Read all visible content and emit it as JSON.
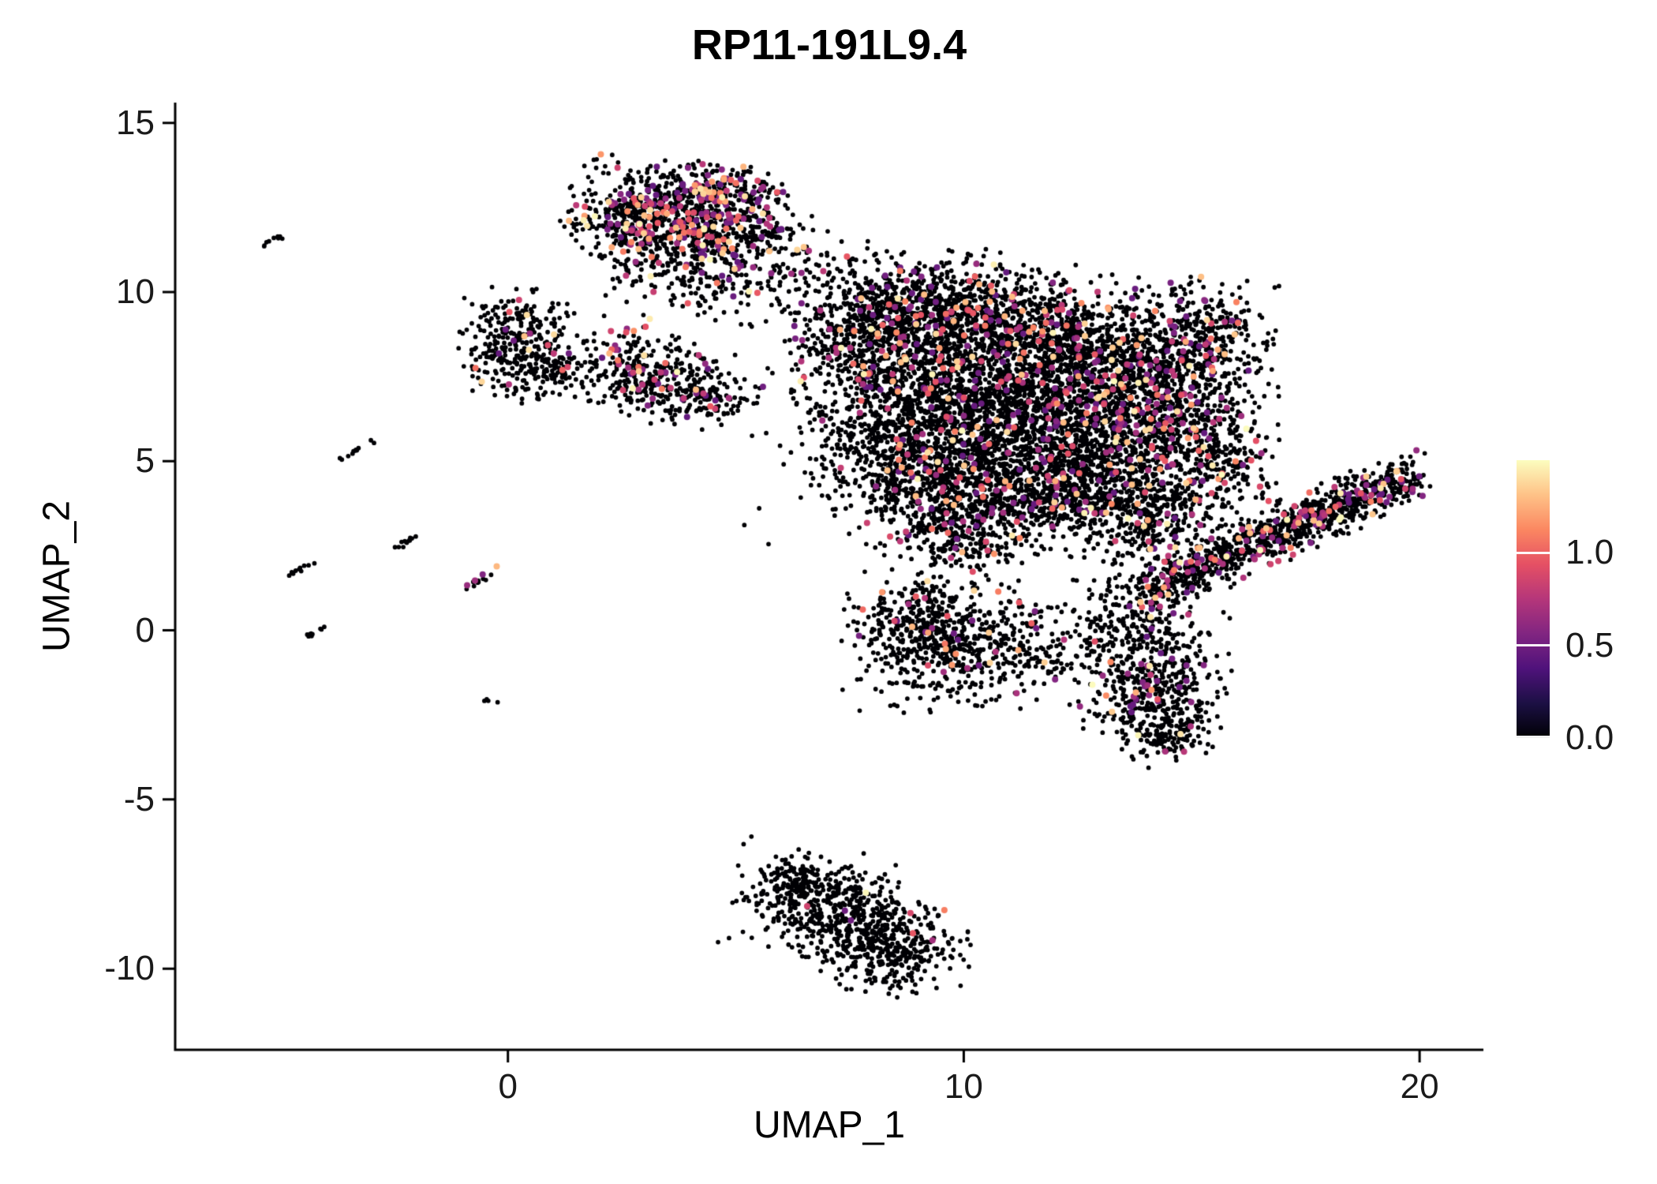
{
  "title": "RP11-191L9.4",
  "axes": {
    "x_label": "UMAP_1",
    "y_label": "UMAP_2"
  },
  "chart_data": {
    "type": "scatter",
    "title": "RP11-191L9.4",
    "xlabel": "UMAP_1",
    "ylabel": "UMAP_2",
    "x_domain": [
      -7.3,
      21.4
    ],
    "y_domain": [
      -12.4,
      15.6
    ],
    "x_ticks": [
      {
        "value": 0,
        "label": "0"
      },
      {
        "value": 10,
        "label": "10"
      },
      {
        "value": 20,
        "label": "20"
      }
    ],
    "y_ticks": [
      {
        "value": 15,
        "label": "15"
      },
      {
        "value": 10,
        "label": "10"
      },
      {
        "value": 5,
        "label": "5"
      },
      {
        "value": 0,
        "label": "0"
      },
      {
        "value": -5,
        "label": "-5"
      },
      {
        "value": -10,
        "label": "-10"
      }
    ],
    "colormap": {
      "name": "magma",
      "stops": [
        "#000004",
        "#1c1044",
        "#4f127b",
        "#812581",
        "#b5367a",
        "#e55064",
        "#fb8761",
        "#fec287",
        "#fcfdbf"
      ],
      "domain": [
        0,
        1.5
      ]
    },
    "legend": {
      "ticks": [
        {
          "value": 1.0,
          "label": "1.0"
        },
        {
          "value": 0.5,
          "label": "0.5"
        },
        {
          "value": 0.0,
          "label": "0.0"
        }
      ]
    },
    "style": {
      "background": "#ffffff",
      "axis_color": "#000000",
      "zero_expression_color": "#000004",
      "point_radius": 2.9,
      "expressing_point_radius": 4.0
    },
    "seed": 42,
    "expression_value_range": [
      0,
      1.5
    ],
    "clusters_format": [
      "cx",
      "cy",
      "sx",
      "sy",
      "n",
      "expr_fraction",
      "rot_deg"
    ],
    "clusters": [
      [
        -5.2,
        11.5,
        0.2,
        0.04,
        9,
        0,
        38
      ],
      [
        -3.4,
        5.25,
        0.26,
        0.04,
        13,
        0,
        38
      ],
      [
        -2.2,
        2.65,
        0.24,
        0.04,
        12,
        0,
        38
      ],
      [
        -4.5,
        1.85,
        0.2,
        0.04,
        10,
        0,
        38
      ],
      [
        -0.6,
        1.5,
        0.26,
        0.05,
        14,
        0.12,
        38
      ],
      [
        -4.3,
        -0.1,
        0.22,
        0.04,
        10,
        0,
        38
      ],
      [
        -0.4,
        -2.1,
        0.08,
        0.05,
        4,
        0,
        0
      ],
      [
        3.7,
        12.35,
        1.05,
        0.68,
        620,
        0.22,
        -8
      ],
      [
        2.45,
        11.9,
        0.45,
        0.5,
        110,
        0.18,
        0
      ],
      [
        4.95,
        12.95,
        0.55,
        0.38,
        130,
        0.22,
        -10
      ],
      [
        4.4,
        11.6,
        0.5,
        0.4,
        90,
        0.15,
        0
      ],
      [
        4.5,
        10.5,
        0.85,
        0.7,
        170,
        0.1,
        0
      ],
      [
        3.1,
        10.8,
        0.5,
        0.45,
        60,
        0.08,
        0
      ],
      [
        6.6,
        10.7,
        0.9,
        0.5,
        90,
        0.06,
        0
      ],
      [
        5.7,
        11.6,
        0.5,
        0.45,
        70,
        0.1,
        0
      ],
      [
        0.2,
        8.9,
        0.55,
        0.55,
        180,
        0.04,
        0
      ],
      [
        0.1,
        7.9,
        0.5,
        0.5,
        140,
        0.04,
        0
      ],
      [
        1.1,
        7.7,
        0.4,
        0.45,
        70,
        0.03,
        0
      ],
      [
        3.0,
        7.6,
        0.75,
        0.6,
        330,
        0.13,
        -15
      ],
      [
        4.3,
        6.9,
        0.55,
        0.45,
        110,
        0.1,
        0
      ],
      [
        7.9,
        9.1,
        0.9,
        0.75,
        430,
        0.07,
        0
      ],
      [
        9.6,
        9.6,
        1.0,
        0.7,
        520,
        0.08,
        0
      ],
      [
        11.6,
        8.9,
        1.1,
        0.8,
        620,
        0.09,
        0
      ],
      [
        13.3,
        7.9,
        0.95,
        0.9,
        540,
        0.1,
        0
      ],
      [
        8.7,
        7.4,
        1.1,
        0.9,
        640,
        0.06,
        0
      ],
      [
        10.6,
        6.7,
        1.3,
        1.0,
        780,
        0.07,
        0
      ],
      [
        12.6,
        6.0,
        1.1,
        1.0,
        680,
        0.09,
        0
      ],
      [
        14.5,
        6.3,
        0.8,
        1.1,
        480,
        0.12,
        0
      ],
      [
        15.3,
        8.6,
        0.7,
        0.8,
        330,
        0.1,
        0
      ],
      [
        8.8,
        5.0,
        1.1,
        0.8,
        580,
        0.05,
        0
      ],
      [
        10.6,
        4.3,
        1.1,
        0.8,
        540,
        0.06,
        0
      ],
      [
        12.5,
        4.0,
        0.9,
        0.7,
        400,
        0.07,
        0
      ],
      [
        13.9,
        3.3,
        0.8,
        0.7,
        340,
        0.1,
        0
      ],
      [
        9.9,
        2.9,
        0.9,
        0.6,
        280,
        0.04,
        0
      ],
      [
        15.6,
        5.0,
        0.6,
        0.95,
        270,
        0.12,
        0
      ],
      [
        11.0,
        6.5,
        2.6,
        2.1,
        380,
        0.05,
        0
      ],
      [
        14.4,
        1.4,
        0.55,
        0.36,
        150,
        0.12,
        31
      ],
      [
        15.4,
        2.0,
        0.55,
        0.36,
        160,
        0.12,
        31
      ],
      [
        16.4,
        2.6,
        0.55,
        0.36,
        170,
        0.12,
        31
      ],
      [
        17.3,
        3.1,
        0.55,
        0.36,
        170,
        0.12,
        31
      ],
      [
        18.2,
        3.6,
        0.55,
        0.36,
        160,
        0.12,
        31
      ],
      [
        19.0,
        4.1,
        0.55,
        0.36,
        140,
        0.12,
        31
      ],
      [
        19.6,
        4.5,
        0.35,
        0.3,
        80,
        0.12,
        31
      ],
      [
        9.8,
        -0.4,
        1.05,
        0.85,
        540,
        0.06,
        0
      ],
      [
        8.8,
        0.6,
        0.6,
        0.5,
        140,
        0.05,
        0
      ],
      [
        11.6,
        -0.6,
        0.95,
        0.5,
        110,
        0.04,
        0
      ],
      [
        14.1,
        -1.5,
        0.75,
        0.95,
        440,
        0.09,
        0
      ],
      [
        14.5,
        -3.0,
        0.5,
        0.5,
        130,
        0.05,
        0
      ],
      [
        13.6,
        0.3,
        0.6,
        0.6,
        140,
        0.06,
        0
      ],
      [
        7.0,
        -8.1,
        0.95,
        0.7,
        420,
        0.006,
        -12
      ],
      [
        8.3,
        -9.3,
        0.85,
        0.62,
        390,
        0.006,
        -12
      ],
      [
        6.3,
        -7.5,
        0.4,
        0.32,
        70,
        0,
        -12
      ]
    ]
  }
}
